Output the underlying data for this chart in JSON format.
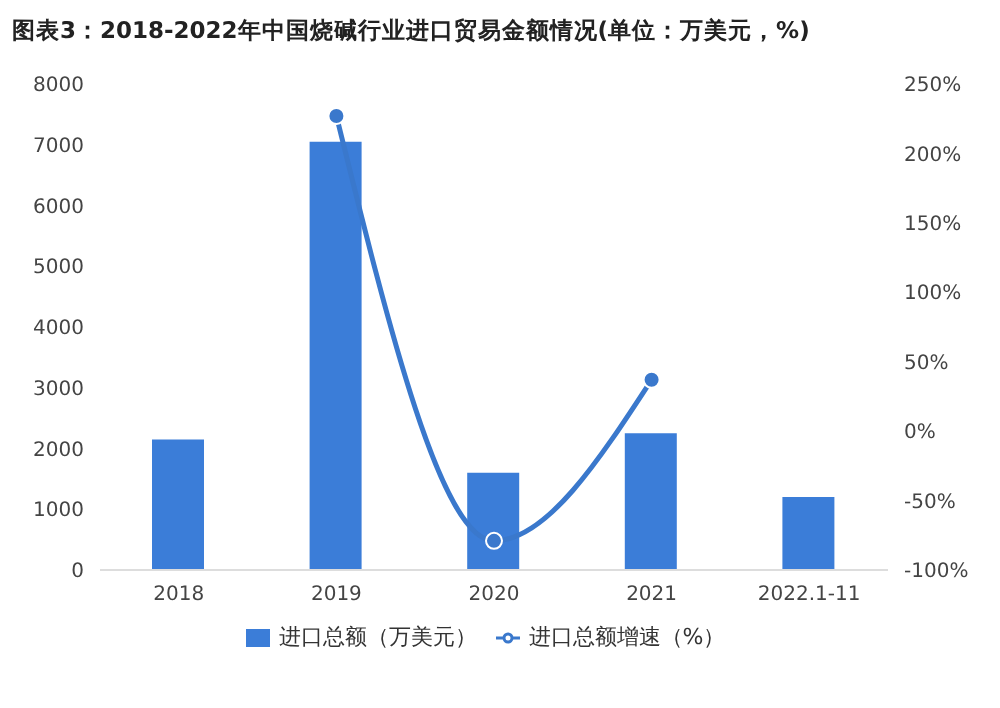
{
  "chart_data": {
    "type": "bar",
    "title": "图表3：2018-2022年中国烧碱行业进口贸易金额情况(单位：万美元，%)",
    "categories": [
      "2018",
      "2019",
      "2020",
      "2021",
      "2022.1-11"
    ],
    "series": [
      {
        "name": "进口总额（万美元）",
        "color": "#3b7dd8",
        "values": [
          2150,
          7050,
          1600,
          2250,
          1200
        ]
      },
      {
        "name": "进口总额增速（%）",
        "type": "line",
        "axis": "y2",
        "color": "#3a78cc",
        "values": [
          null,
          227,
          -79,
          37,
          null
        ]
      }
    ],
    "ylim": [
      0,
      8000
    ],
    "yticks": [
      0,
      1000,
      2000,
      3000,
      4000,
      5000,
      6000,
      7000,
      8000
    ],
    "y2lim": [
      -100,
      250
    ],
    "y2ticks": [
      {
        "value": -100,
        "label": "-100%"
      },
      {
        "value": -50,
        "label": "-50%"
      },
      {
        "value": 0,
        "label": "0%"
      },
      {
        "value": 50,
        "label": "50%"
      },
      {
        "value": 100,
        "label": "100%"
      },
      {
        "value": 150,
        "label": "150%"
      },
      {
        "value": 200,
        "label": "200%"
      },
      {
        "value": 250,
        "label": "250%"
      }
    ],
    "grid": false,
    "legend": "bottom",
    "marker": "circle",
    "line_style": "solid"
  }
}
